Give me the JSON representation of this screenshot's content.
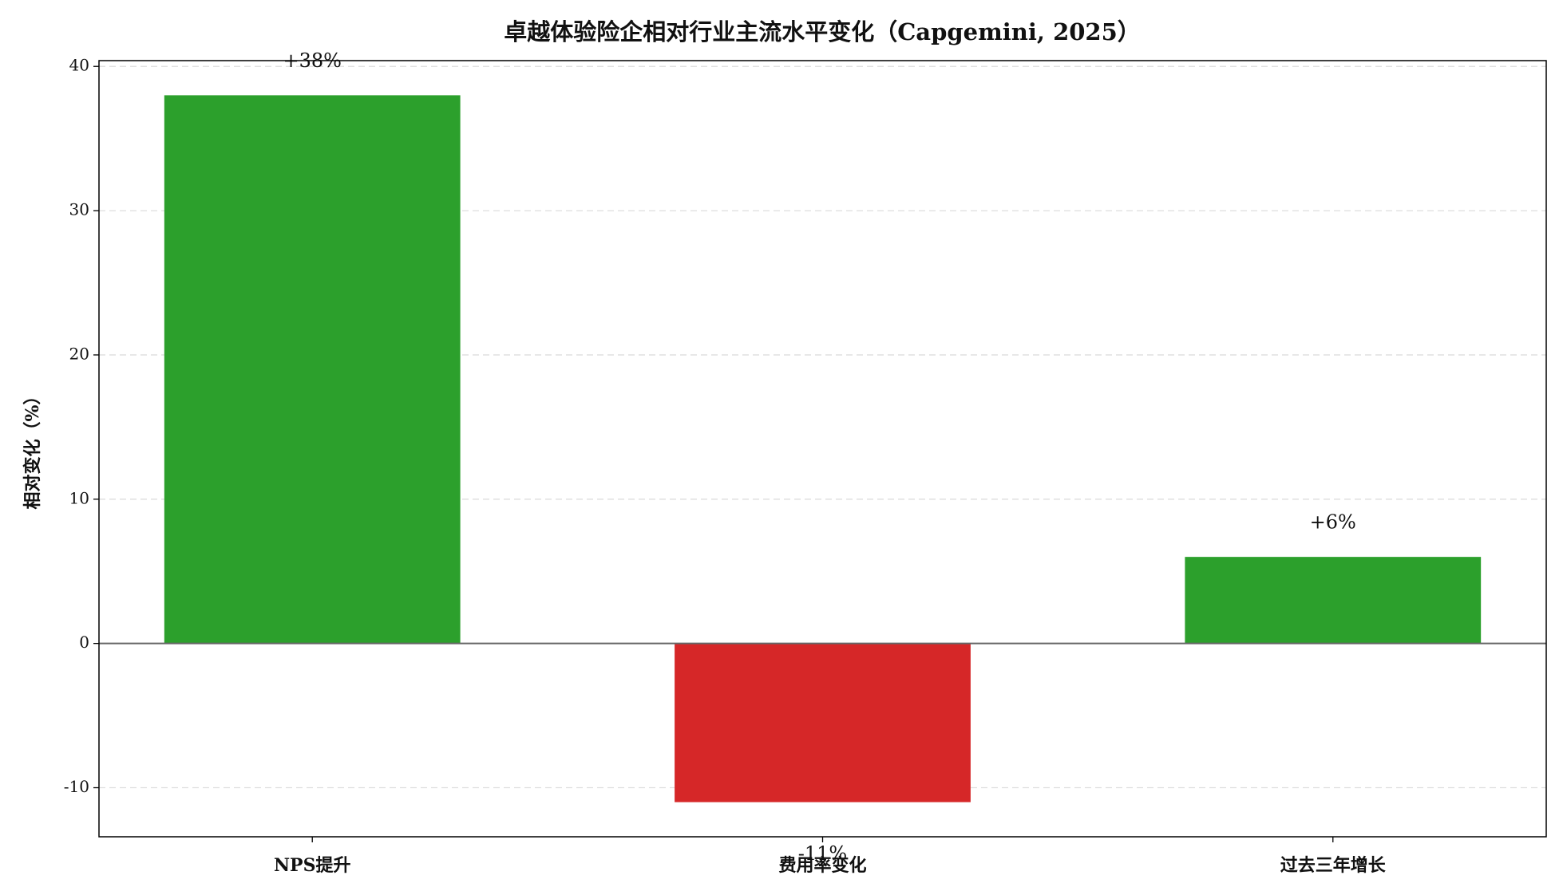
{
  "chart_data": {
    "type": "bar",
    "title": "卓越体验险企相对行业主流水平变化（Capgemini, 2025）",
    "ylabel": "相对变化（%）",
    "categories": [
      "NPS提升",
      "费用率变化",
      "过去三年增长"
    ],
    "values": [
      38,
      -11,
      6
    ],
    "value_labels": [
      "+38%",
      "-11%",
      "+6%"
    ],
    "colors": [
      "#2ca02c",
      "#d62728",
      "#2ca02c"
    ],
    "ylim": [
      -13.4,
      40.4
    ],
    "yticks": [
      -10,
      0,
      10,
      20,
      30,
      40
    ],
    "grid": true
  }
}
